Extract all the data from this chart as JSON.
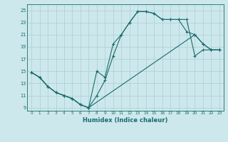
{
  "xlabel": "Humidex (Indice chaleur)",
  "bg_color": "#cde8ec",
  "grid_color": "#aacdd4",
  "line_color": "#1a6b6b",
  "xlim": [
    -0.5,
    23.5
  ],
  "ylim": [
    8.5,
    26.0
  ],
  "xticks": [
    0,
    1,
    2,
    3,
    4,
    5,
    6,
    7,
    8,
    9,
    10,
    11,
    12,
    13,
    14,
    15,
    16,
    17,
    18,
    19,
    20,
    21,
    22,
    23
  ],
  "yticks": [
    9,
    11,
    13,
    15,
    17,
    19,
    21,
    23,
    25
  ],
  "series": [
    {
      "x": [
        0,
        1,
        2,
        3,
        4,
        5,
        6,
        7,
        8,
        9,
        10,
        11,
        12,
        13,
        14,
        15,
        16,
        17,
        18,
        19,
        20,
        21,
        22,
        23
      ],
      "y": [
        14.8,
        14.0,
        12.5,
        11.5,
        11.0,
        10.5,
        9.5,
        9.0,
        11.0,
        13.5,
        17.5,
        21.0,
        23.0,
        24.8,
        24.8,
        24.5,
        23.5,
        23.5,
        23.5,
        23.5,
        17.5,
        18.5,
        18.5,
        18.5
      ]
    },
    {
      "x": [
        0,
        1,
        2,
        3,
        4,
        5,
        6,
        7,
        8,
        9,
        10,
        11,
        12,
        13,
        14,
        15,
        16,
        17,
        18,
        19,
        20,
        21,
        22,
        23
      ],
      "y": [
        14.8,
        14.0,
        12.5,
        11.5,
        11.0,
        10.5,
        9.5,
        9.0,
        15.0,
        14.0,
        19.5,
        21.0,
        23.0,
        24.8,
        24.8,
        24.5,
        23.5,
        23.5,
        23.5,
        21.5,
        21.0,
        19.5,
        18.5,
        18.5
      ]
    },
    {
      "x": [
        0,
        1,
        2,
        3,
        4,
        5,
        6,
        7,
        20,
        21,
        22,
        23
      ],
      "y": [
        14.8,
        14.0,
        12.5,
        11.5,
        11.0,
        10.5,
        9.5,
        9.0,
        21.0,
        19.5,
        18.5,
        18.5
      ]
    }
  ]
}
